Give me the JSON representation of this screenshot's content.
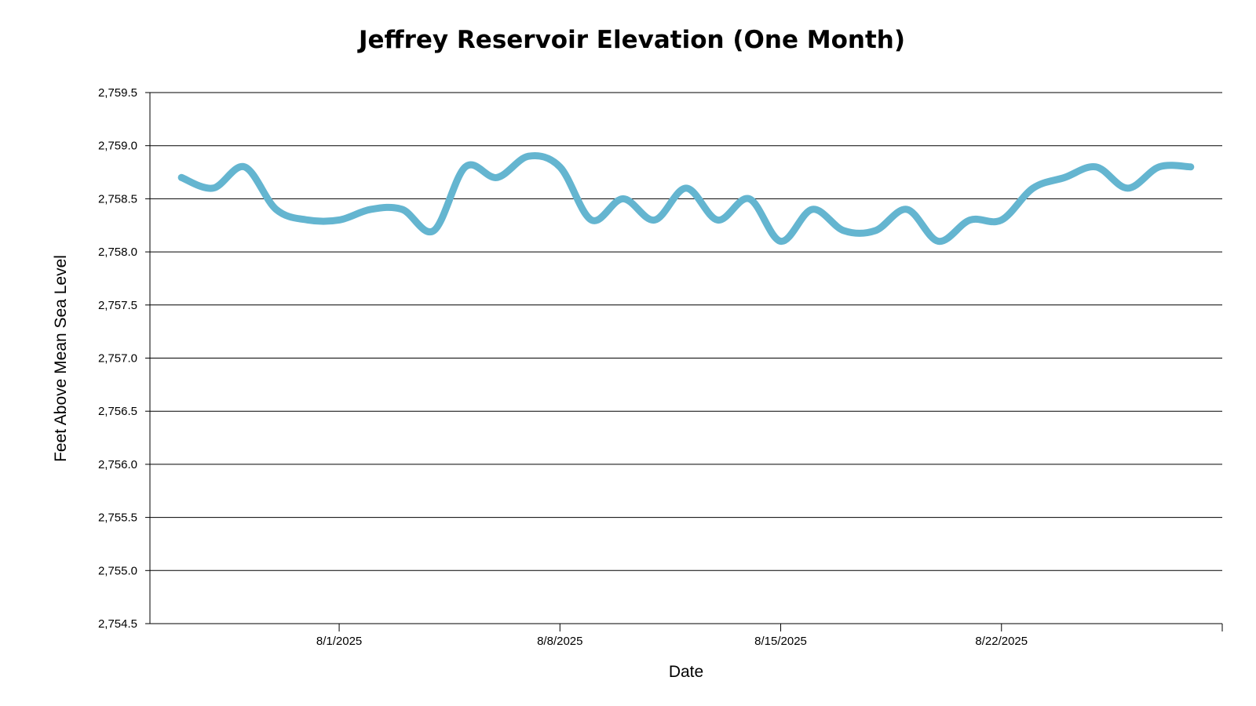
{
  "chart_data": {
    "type": "line",
    "title": "Jeffrey Reservoir Elevation (One Month)",
    "xlabel": "Date",
    "ylabel": "Feet Above Mean Sea Level",
    "ylim": [
      2754.5,
      2759.5
    ],
    "y_ticks": [
      "2,754.5",
      "2,755.0",
      "2,755.5",
      "2,756.0",
      "2,756.5",
      "2,757.0",
      "2,757.5",
      "2,758.0",
      "2,758.5",
      "2,759.0",
      "2,759.5"
    ],
    "x_tick_labels": [
      "8/1/2025",
      "8/8/2025",
      "8/15/2025",
      "8/22/2025"
    ],
    "x_range": [
      "2025-07-26",
      "2025-08-29"
    ],
    "grid": true,
    "colors": {
      "line": "#64b5d0"
    },
    "series": [
      {
        "x": [
          "2025-07-27",
          "2025-07-28",
          "2025-07-29",
          "2025-07-30",
          "2025-07-31",
          "2025-08-01",
          "2025-08-02",
          "2025-08-03",
          "2025-08-04",
          "2025-08-05",
          "2025-08-06",
          "2025-08-07",
          "2025-08-08",
          "2025-08-09",
          "2025-08-10",
          "2025-08-11",
          "2025-08-12",
          "2025-08-13",
          "2025-08-14",
          "2025-08-15",
          "2025-08-16",
          "2025-08-17",
          "2025-08-18",
          "2025-08-19",
          "2025-08-20",
          "2025-08-21",
          "2025-08-22",
          "2025-08-23",
          "2025-08-24",
          "2025-08-25",
          "2025-08-26",
          "2025-08-27",
          "2025-08-28"
        ],
        "values": [
          2758.7,
          2758.6,
          2758.8,
          2758.4,
          2758.3,
          2758.3,
          2758.4,
          2758.4,
          2758.2,
          2758.8,
          2758.7,
          2758.9,
          2758.8,
          2758.3,
          2758.5,
          2758.3,
          2758.6,
          2758.3,
          2758.5,
          2758.1,
          2758.4,
          2758.2,
          2758.2,
          2758.4,
          2758.1,
          2758.3,
          2758.3,
          2758.6,
          2758.7,
          2758.8,
          2758.6,
          2758.8,
          2758.8
        ]
      }
    ]
  }
}
